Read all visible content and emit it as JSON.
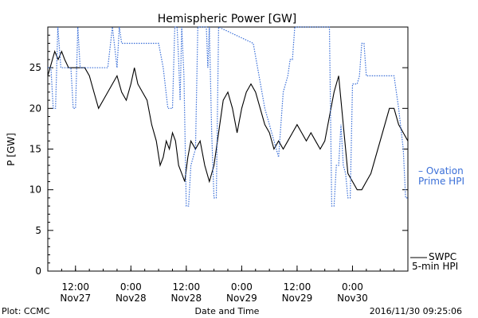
{
  "chart_data": {
    "type": "line",
    "title": "Hemispheric Power [GW]",
    "xlabel": "Date and Time",
    "ylabel": "P [GW]",
    "ylim": [
      0,
      30
    ],
    "y_ticks": [
      0,
      5,
      10,
      15,
      20,
      25
    ],
    "xlim": [
      "2016-11-27T06:00",
      "2016-11-30T12:00"
    ],
    "x_ticks": [
      {
        "time": "2016-11-27T12:00",
        "top": "12:00",
        "bottom": "Nov27"
      },
      {
        "time": "2016-11-28T00:00",
        "top": "0:00",
        "bottom": "Nov28"
      },
      {
        "time": "2016-11-28T12:00",
        "top": "12:00",
        "bottom": "Nov28"
      },
      {
        "time": "2016-11-29T00:00",
        "top": "0:00",
        "bottom": "Nov29"
      },
      {
        "time": "2016-11-29T12:00",
        "top": "12:00",
        "bottom": "Nov29"
      },
      {
        "time": "2016-11-30T00:00",
        "top": "0:00",
        "bottom": "Nov30"
      }
    ],
    "grid": false,
    "legend_position": "right",
    "series": [
      {
        "name": "SWPC 5-min HPI",
        "legend_lines": [
          "SWPC",
          "5-min HPI"
        ],
        "color": "#000000",
        "style": "solid",
        "points": [
          [
            "2016-11-27T06:00",
            24
          ],
          [
            "2016-11-27T06:30",
            25
          ],
          [
            "2016-11-27T07:00",
            26
          ],
          [
            "2016-11-27T07:30",
            27
          ],
          [
            "2016-11-27T08:15",
            26
          ],
          [
            "2016-11-27T09:00",
            27
          ],
          [
            "2016-11-27T09:40",
            26
          ],
          [
            "2016-11-27T10:30",
            25
          ],
          [
            "2016-11-27T12:00",
            25
          ],
          [
            "2016-11-27T14:00",
            25
          ],
          [
            "2016-11-27T15:00",
            24
          ],
          [
            "2016-11-27T16:00",
            22
          ],
          [
            "2016-11-27T17:00",
            20
          ],
          [
            "2016-11-27T18:00",
            21
          ],
          [
            "2016-11-27T19:00",
            22
          ],
          [
            "2016-11-27T20:00",
            23
          ],
          [
            "2016-11-27T21:00",
            24
          ],
          [
            "2016-11-27T22:00",
            22
          ],
          [
            "2016-11-27T23:00",
            21
          ],
          [
            "2016-11-28T00:00",
            23
          ],
          [
            "2016-11-28T00:45",
            25
          ],
          [
            "2016-11-28T01:30",
            23
          ],
          [
            "2016-11-28T02:30",
            22
          ],
          [
            "2016-11-28T03:30",
            21
          ],
          [
            "2016-11-28T04:30",
            18
          ],
          [
            "2016-11-28T05:30",
            16
          ],
          [
            "2016-11-28T06:20",
            13
          ],
          [
            "2016-11-28T07:00",
            14
          ],
          [
            "2016-11-28T07:40",
            16
          ],
          [
            "2016-11-28T08:20",
            15
          ],
          [
            "2016-11-28T09:00",
            17
          ],
          [
            "2016-11-28T09:40",
            16
          ],
          [
            "2016-11-28T10:20",
            13
          ],
          [
            "2016-11-28T11:00",
            12
          ],
          [
            "2016-11-28T11:40",
            11
          ],
          [
            "2016-11-28T12:20",
            14
          ],
          [
            "2016-11-28T13:00",
            16
          ],
          [
            "2016-11-28T14:00",
            15
          ],
          [
            "2016-11-28T15:00",
            16
          ],
          [
            "2016-11-28T16:00",
            13
          ],
          [
            "2016-11-28T17:00",
            11
          ],
          [
            "2016-11-28T18:00",
            13
          ],
          [
            "2016-11-28T19:00",
            17
          ],
          [
            "2016-11-28T20:00",
            21
          ],
          [
            "2016-11-28T21:00",
            22
          ],
          [
            "2016-11-28T22:00",
            20
          ],
          [
            "2016-11-28T23:00",
            17
          ],
          [
            "2016-11-29T00:00",
            20
          ],
          [
            "2016-11-29T01:00",
            22
          ],
          [
            "2016-11-29T02:00",
            23
          ],
          [
            "2016-11-29T03:00",
            22
          ],
          [
            "2016-11-29T04:00",
            20
          ],
          [
            "2016-11-29T05:00",
            18
          ],
          [
            "2016-11-29T06:00",
            17
          ],
          [
            "2016-11-29T07:00",
            15
          ],
          [
            "2016-11-29T08:00",
            16
          ],
          [
            "2016-11-29T09:00",
            15
          ],
          [
            "2016-11-29T10:00",
            16
          ],
          [
            "2016-11-29T11:00",
            17
          ],
          [
            "2016-11-29T12:00",
            18
          ],
          [
            "2016-11-29T13:00",
            17
          ],
          [
            "2016-11-29T14:00",
            16
          ],
          [
            "2016-11-29T15:00",
            17
          ],
          [
            "2016-11-29T16:00",
            16
          ],
          [
            "2016-11-29T17:00",
            15
          ],
          [
            "2016-11-29T18:00",
            16
          ],
          [
            "2016-11-29T19:00",
            19
          ],
          [
            "2016-11-29T20:00",
            22
          ],
          [
            "2016-11-29T21:00",
            24
          ],
          [
            "2016-11-29T22:00",
            18
          ],
          [
            "2016-11-29T23:00",
            12
          ],
          [
            "2016-11-30T00:00",
            11
          ],
          [
            "2016-11-30T01:00",
            10
          ],
          [
            "2016-11-30T02:00",
            10
          ],
          [
            "2016-11-30T03:00",
            11
          ],
          [
            "2016-11-30T04:00",
            12
          ],
          [
            "2016-11-30T05:00",
            14
          ],
          [
            "2016-11-30T06:00",
            16
          ],
          [
            "2016-11-30T07:00",
            18
          ],
          [
            "2016-11-30T08:00",
            20
          ],
          [
            "2016-11-30T09:00",
            20
          ],
          [
            "2016-11-30T10:00",
            18
          ],
          [
            "2016-11-30T11:00",
            17
          ],
          [
            "2016-11-30T12:00",
            16
          ]
        ]
      },
      {
        "name": "Ovation Prime HPI",
        "legend_lines": [
          "– Ovation",
          "Prime HPI"
        ],
        "color": "#3a6fd8",
        "style": "dotted",
        "points": [
          [
            "2016-11-27T06:00",
            25
          ],
          [
            "2016-11-27T06:40",
            25
          ],
          [
            "2016-11-27T07:10",
            20
          ],
          [
            "2016-11-27T07:40",
            20
          ],
          [
            "2016-11-27T08:10",
            30
          ],
          [
            "2016-11-27T08:50",
            25
          ],
          [
            "2016-11-27T10:30",
            25
          ],
          [
            "2016-11-27T11:00",
            25
          ],
          [
            "2016-11-27T11:30",
            20
          ],
          [
            "2016-11-27T12:00",
            20
          ],
          [
            "2016-11-27T12:30",
            30
          ],
          [
            "2016-11-27T13:00",
            25
          ],
          [
            "2016-11-27T14:00",
            25
          ],
          [
            "2016-11-27T15:00",
            25
          ],
          [
            "2016-11-27T16:00",
            25
          ],
          [
            "2016-11-27T17:00",
            25
          ],
          [
            "2016-11-27T18:00",
            25
          ],
          [
            "2016-11-27T19:00",
            25
          ],
          [
            "2016-11-27T20:00",
            30
          ],
          [
            "2016-11-27T21:00",
            25
          ],
          [
            "2016-11-27T21:30",
            30
          ],
          [
            "2016-11-27T22:00",
            28
          ],
          [
            "2016-11-27T23:00",
            28
          ],
          [
            "2016-11-28T00:00",
            28
          ],
          [
            "2016-11-28T01:00",
            28
          ],
          [
            "2016-11-28T02:00",
            28
          ],
          [
            "2016-11-28T03:00",
            28
          ],
          [
            "2016-11-28T04:00",
            28
          ],
          [
            "2016-11-28T05:00",
            28
          ],
          [
            "2016-11-28T06:00",
            28
          ],
          [
            "2016-11-28T07:00",
            25
          ],
          [
            "2016-11-28T08:00",
            20
          ],
          [
            "2016-11-28T08:40",
            20
          ],
          [
            "2016-11-28T09:00",
            20
          ],
          [
            "2016-11-28T09:30",
            30
          ],
          [
            "2016-11-28T10:00",
            30
          ],
          [
            "2016-11-28T10:20",
            26
          ],
          [
            "2016-11-28T10:40",
            21
          ],
          [
            "2016-11-28T11:00",
            30
          ],
          [
            "2016-11-28T11:30",
            24
          ],
          [
            "2016-11-28T12:00",
            8
          ],
          [
            "2016-11-28T12:30",
            8
          ],
          [
            "2016-11-28T13:00",
            13
          ],
          [
            "2016-11-28T14:00",
            15
          ],
          [
            "2016-11-28T14:30",
            30
          ],
          [
            "2016-11-28T15:00",
            30
          ],
          [
            "2016-11-28T15:30",
            30
          ],
          [
            "2016-11-28T16:00",
            30
          ],
          [
            "2016-11-28T16:20",
            30
          ],
          [
            "2016-11-28T16:40",
            25
          ],
          [
            "2016-11-28T17:00",
            30
          ],
          [
            "2016-11-28T17:30",
            17
          ],
          [
            "2016-11-28T18:00",
            9
          ],
          [
            "2016-11-28T18:30",
            9
          ],
          [
            "2016-11-28T19:00",
            30
          ],
          [
            "2016-11-29T02:30",
            28
          ],
          [
            "2016-11-29T05:00",
            20
          ],
          [
            "2016-11-29T06:00",
            18
          ],
          [
            "2016-11-29T07:00",
            16
          ],
          [
            "2016-11-29T08:00",
            14
          ],
          [
            "2016-11-29T09:00",
            22
          ],
          [
            "2016-11-29T10:00",
            24
          ],
          [
            "2016-11-29T10:30",
            26
          ],
          [
            "2016-11-29T11:00",
            26
          ],
          [
            "2016-11-29T11:30",
            30
          ],
          [
            "2016-11-29T12:00",
            30
          ],
          [
            "2016-11-29T13:00",
            30
          ],
          [
            "2016-11-29T14:00",
            30
          ],
          [
            "2016-11-29T15:00",
            30
          ],
          [
            "2016-11-29T16:00",
            30
          ],
          [
            "2016-11-29T17:00",
            30
          ],
          [
            "2016-11-29T18:00",
            30
          ],
          [
            "2016-11-29T19:00",
            30
          ],
          [
            "2016-11-29T19:30",
            8
          ],
          [
            "2016-11-29T20:00",
            8
          ],
          [
            "2016-11-29T20:30",
            13
          ],
          [
            "2016-11-29T21:00",
            13
          ],
          [
            "2016-11-29T21:30",
            18
          ],
          [
            "2016-11-29T22:00",
            13
          ],
          [
            "2016-11-29T22:30",
            12
          ],
          [
            "2016-11-29T23:00",
            9
          ],
          [
            "2016-11-29T23:30",
            9
          ],
          [
            "2016-11-30T00:00",
            23
          ],
          [
            "2016-11-30T00:30",
            23
          ],
          [
            "2016-11-30T01:00",
            23
          ],
          [
            "2016-11-30T01:30",
            24
          ],
          [
            "2016-11-30T02:00",
            28
          ],
          [
            "2016-11-30T02:30",
            28
          ],
          [
            "2016-11-30T03:00",
            24
          ],
          [
            "2016-11-30T04:00",
            24
          ],
          [
            "2016-11-30T05:00",
            24
          ],
          [
            "2016-11-30T06:00",
            24
          ],
          [
            "2016-11-30T07:00",
            24
          ],
          [
            "2016-11-30T08:00",
            24
          ],
          [
            "2016-11-30T09:00",
            24
          ],
          [
            "2016-11-30T10:00",
            20
          ],
          [
            "2016-11-30T11:00",
            15
          ],
          [
            "2016-11-30T11:30",
            9
          ],
          [
            "2016-11-30T12:00",
            9
          ]
        ]
      }
    ]
  },
  "footer": {
    "left": "Plot: CCMC",
    "right": "2016/11/30 09:25:06"
  }
}
